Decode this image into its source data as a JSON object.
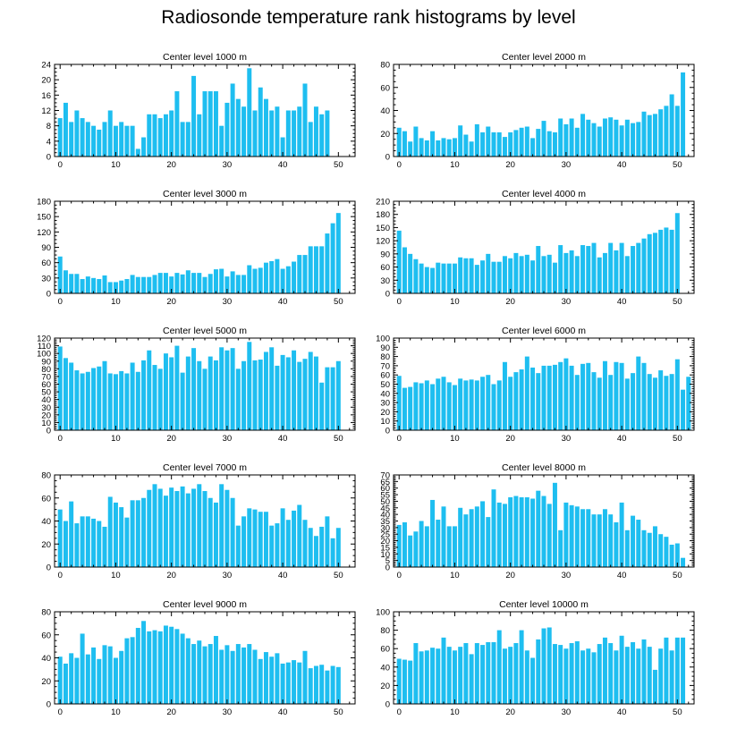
{
  "title": "Radiosonde temperature rank histograms by level",
  "bar_color": "#1EBEF0",
  "chart_data": [
    {
      "type": "bar",
      "title": "Center level 1000 m",
      "xlim": [
        -1,
        53
      ],
      "xticks": [
        0,
        10,
        20,
        30,
        40,
        50
      ],
      "ylim": [
        0,
        24
      ],
      "yticks": [
        0,
        4,
        8,
        12,
        16,
        20,
        24
      ],
      "values": [
        10,
        14,
        9,
        12,
        10,
        9,
        8,
        7,
        9,
        12,
        8,
        9,
        8,
        8,
        2,
        5,
        11,
        11,
        10,
        11,
        12,
        17,
        9,
        9,
        21,
        11,
        17,
        17,
        17,
        8,
        14,
        19,
        15,
        13,
        23,
        12,
        18,
        15,
        12,
        13,
        5,
        12,
        12,
        13,
        19,
        9,
        13,
        11,
        12
      ]
    },
    {
      "type": "bar",
      "title": "Center level 2000 m",
      "xlim": [
        -1,
        53
      ],
      "xticks": [
        0,
        10,
        20,
        30,
        40,
        50
      ],
      "ylim": [
        0,
        80
      ],
      "yticks": [
        0,
        20,
        40,
        60,
        80
      ],
      "values": [
        25,
        22,
        13,
        26,
        16,
        14,
        22,
        14,
        16,
        15,
        16,
        27,
        19,
        13,
        28,
        21,
        26,
        21,
        21,
        17,
        21,
        23,
        25,
        26,
        16,
        24,
        31,
        22,
        21,
        33,
        28,
        33,
        25,
        37,
        32,
        29,
        26,
        33,
        34,
        32,
        27,
        32,
        29,
        30,
        39,
        36,
        37,
        41,
        44,
        54,
        44,
        73
      ]
    },
    {
      "type": "bar",
      "title": "Center level 3000 m",
      "xlim": [
        -1,
        53
      ],
      "xticks": [
        0,
        10,
        20,
        30,
        40,
        50
      ],
      "ylim": [
        0,
        180
      ],
      "yticks": [
        0,
        30,
        60,
        90,
        120,
        150,
        180
      ],
      "values": [
        72,
        45,
        38,
        38,
        28,
        33,
        30,
        28,
        35,
        22,
        22,
        25,
        28,
        36,
        32,
        32,
        32,
        36,
        40,
        40,
        33,
        40,
        37,
        45,
        40,
        40,
        32,
        38,
        47,
        48,
        33,
        43,
        36,
        36,
        55,
        48,
        50,
        60,
        63,
        67,
        48,
        53,
        62,
        75,
        75,
        92,
        92,
        92,
        117,
        137,
        157
      ]
    },
    {
      "type": "bar",
      "title": "Center level 4000 m",
      "xlim": [
        -1,
        53
      ],
      "xticks": [
        0,
        10,
        20,
        30,
        40,
        50
      ],
      "ylim": [
        0,
        210
      ],
      "yticks": [
        0,
        30,
        60,
        90,
        120,
        150,
        180,
        210
      ],
      "values": [
        143,
        105,
        90,
        78,
        68,
        60,
        58,
        70,
        68,
        68,
        68,
        82,
        80,
        80,
        65,
        75,
        90,
        72,
        72,
        85,
        80,
        92,
        85,
        88,
        75,
        108,
        85,
        88,
        70,
        110,
        92,
        98,
        85,
        110,
        108,
        115,
        82,
        92,
        115,
        98,
        115,
        85,
        108,
        115,
        125,
        135,
        138,
        145,
        150,
        145,
        183
      ]
    },
    {
      "type": "bar",
      "title": "Center level 5000 m",
      "xlim": [
        -1,
        53
      ],
      "xticks": [
        0,
        10,
        20,
        30,
        40,
        50
      ],
      "ylim": [
        0,
        120
      ],
      "yticks": [
        0,
        10,
        20,
        30,
        40,
        50,
        60,
        70,
        80,
        90,
        100,
        110,
        120
      ],
      "values": [
        109,
        94,
        88,
        78,
        74,
        76,
        81,
        83,
        90,
        74,
        73,
        77,
        74,
        88,
        76,
        91,
        104,
        85,
        80,
        100,
        95,
        110,
        75,
        96,
        107,
        90,
        80,
        96,
        91,
        108,
        104,
        107,
        80,
        90,
        115,
        91,
        92,
        102,
        108,
        84,
        98,
        95,
        104,
        89,
        93,
        102,
        96,
        62,
        82,
        82,
        90
      ]
    },
    {
      "type": "bar",
      "title": "Center level 6000 m",
      "xlim": [
        -1,
        53
      ],
      "xticks": [
        0,
        10,
        20,
        30,
        40,
        50
      ],
      "ylim": [
        0,
        100
      ],
      "yticks": [
        0,
        10,
        20,
        30,
        40,
        50,
        60,
        70,
        80,
        90,
        100
      ],
      "values": [
        59,
        46,
        47,
        52,
        51,
        54,
        50,
        56,
        58,
        52,
        49,
        56,
        54,
        55,
        54,
        58,
        60,
        50,
        54,
        74,
        58,
        63,
        66,
        80,
        68,
        62,
        70,
        70,
        71,
        74,
        78,
        70,
        60,
        72,
        73,
        63,
        57,
        75,
        60,
        74,
        73,
        56,
        62,
        80,
        73,
        61,
        57,
        65,
        59,
        61,
        77,
        44,
        58
      ]
    },
    {
      "type": "bar",
      "title": "Center level 7000 m",
      "xlim": [
        -1,
        53
      ],
      "xticks": [
        0,
        10,
        20,
        30,
        40,
        50
      ],
      "ylim": [
        0,
        80
      ],
      "yticks": [
        0,
        20,
        40,
        60,
        80
      ],
      "values": [
        50,
        40,
        57,
        38,
        44,
        44,
        42,
        40,
        35,
        61,
        56,
        52,
        43,
        58,
        58,
        60,
        67,
        72,
        68,
        62,
        69,
        66,
        70,
        64,
        68,
        72,
        66,
        60,
        56,
        72,
        67,
        60,
        36,
        44,
        51,
        50,
        48,
        48,
        36,
        38,
        51,
        41,
        49,
        54,
        41,
        34,
        27,
        35,
        44,
        25,
        34
      ]
    },
    {
      "type": "bar",
      "title": "Center level 8000 m",
      "xlim": [
        -1,
        53
      ],
      "xticks": [
        0,
        10,
        20,
        30,
        40,
        50
      ],
      "ylim": [
        0,
        70
      ],
      "yticks": [
        0,
        5,
        10,
        15,
        20,
        25,
        30,
        35,
        40,
        45,
        50,
        55,
        60,
        65,
        70
      ],
      "values": [
        32,
        34,
        24,
        27,
        35,
        31,
        51,
        36,
        46,
        31,
        31,
        45,
        40,
        44,
        46,
        50,
        38,
        59,
        49,
        48,
        53,
        54,
        53,
        53,
        52,
        58,
        54,
        48,
        64,
        28,
        49,
        47,
        46,
        44,
        44,
        40,
        40,
        44,
        40,
        34,
        49,
        28,
        39,
        36,
        28,
        26,
        31,
        25,
        23,
        17,
        18,
        7
      ]
    },
    {
      "type": "bar",
      "title": "Center level 9000 m",
      "xlim": [
        -1,
        53
      ],
      "xticks": [
        0,
        10,
        20,
        30,
        40,
        50
      ],
      "ylim": [
        0,
        80
      ],
      "yticks": [
        0,
        20,
        40,
        60,
        80
      ],
      "values": [
        41,
        35,
        44,
        40,
        61,
        43,
        49,
        39,
        51,
        50,
        40,
        46,
        57,
        58,
        66,
        72,
        63,
        64,
        63,
        68,
        67,
        65,
        61,
        57,
        52,
        55,
        50,
        52,
        59,
        47,
        51,
        46,
        52,
        49,
        52,
        47,
        39,
        45,
        41,
        44,
        35,
        36,
        38,
        36,
        46,
        31,
        33,
        34,
        29,
        33,
        32
      ]
    },
    {
      "type": "bar",
      "title": "Center level 10000 m",
      "xlim": [
        -1,
        53
      ],
      "xticks": [
        0,
        10,
        20,
        30,
        40,
        50
      ],
      "ylim": [
        0,
        100
      ],
      "yticks": [
        0,
        20,
        40,
        60,
        80,
        100
      ],
      "values": [
        49,
        48,
        47,
        66,
        57,
        58,
        61,
        60,
        72,
        62,
        58,
        62,
        66,
        54,
        66,
        64,
        67,
        67,
        80,
        60,
        62,
        66,
        80,
        58,
        50,
        70,
        82,
        83,
        65,
        64,
        60,
        66,
        68,
        58,
        60,
        56,
        65,
        72,
        66,
        58,
        74,
        62,
        67,
        60,
        70,
        62,
        37,
        60,
        72,
        58,
        72,
        72
      ]
    }
  ]
}
